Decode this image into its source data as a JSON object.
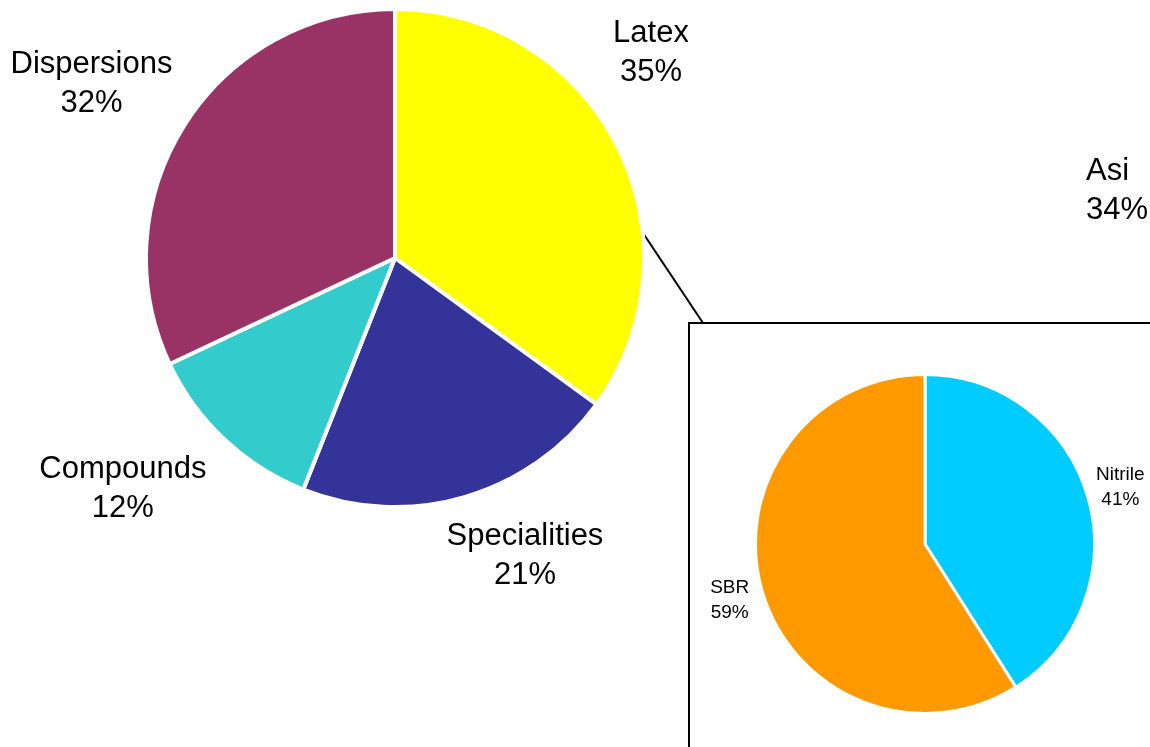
{
  "chart_data": [
    {
      "type": "pie",
      "categories": [
        "Latex",
        "Specialities",
        "Compounds",
        "Dispersions"
      ],
      "values": [
        35,
        21,
        12,
        32
      ],
      "colors": [
        "#ffff00",
        "#333399",
        "#33cccc",
        "#993366"
      ],
      "value_labels": [
        "35%",
        "21%",
        "12%",
        "32%"
      ]
    },
    {
      "type": "pie",
      "categories": [
        "Nitrile",
        "SBR"
      ],
      "values": [
        41,
        59
      ],
      "colors": [
        "#00ccff",
        "#ff9900"
      ],
      "value_labels": [
        "41%",
        "59%"
      ]
    },
    {
      "type": "other",
      "annotations": [
        "Asi",
        "34%"
      ]
    }
  ]
}
